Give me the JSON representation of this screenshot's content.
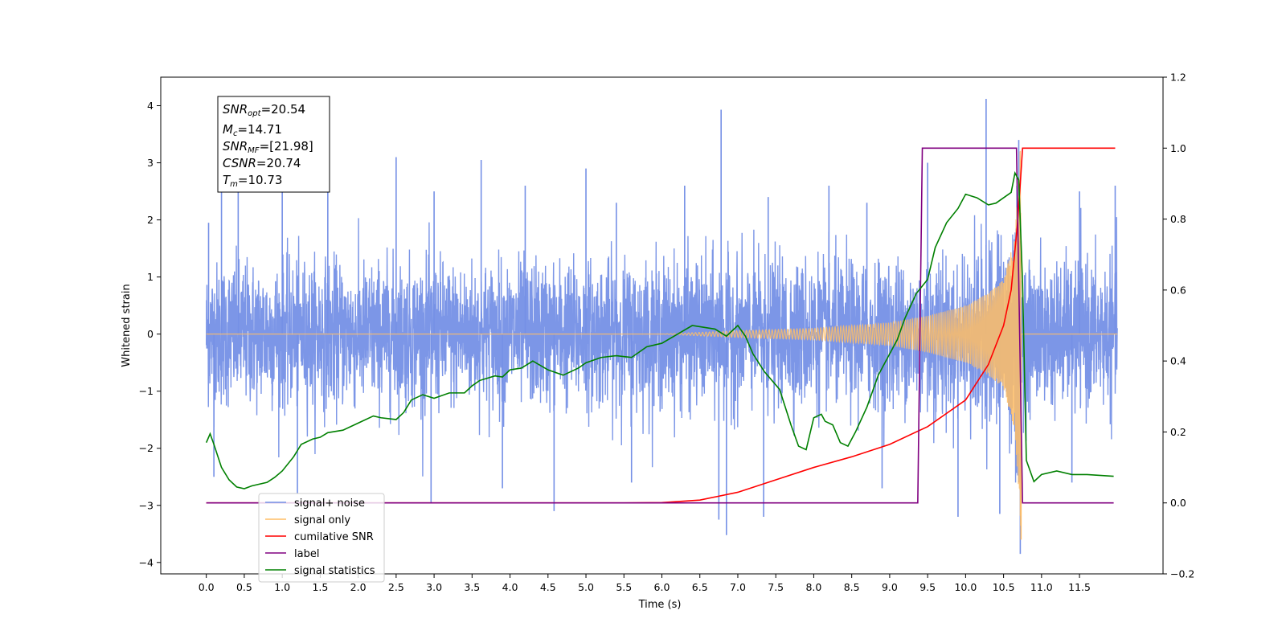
{
  "chart_data": {
    "type": "line",
    "xlabel": "Time (s)",
    "ylabel": "Whitened strain",
    "title": "",
    "xlim": [
      -0.6,
      12.6
    ],
    "ylim": [
      -4.2,
      4.5
    ],
    "y2lim": [
      -0.2,
      1.2
    ],
    "x_ticks": [
      "0.0",
      "0.5",
      "1.0",
      "1.5",
      "2.0",
      "2.5",
      "3.0",
      "3.5",
      "4.0",
      "4.5",
      "5.0",
      "5.5",
      "6.0",
      "6.5",
      "7.0",
      "7.5",
      "8.0",
      "8.5",
      "9.0",
      "9.5",
      "10.0",
      "10.5",
      "11.0",
      "11.5"
    ],
    "y_ticks": [
      "−4",
      "−3",
      "−2",
      "−1",
      "0",
      "1",
      "2",
      "3",
      "4"
    ],
    "y2_ticks": [
      "−0.2",
      "0.0",
      "0.2",
      "0.4",
      "0.6",
      "0.8",
      "1.0",
      "1.2"
    ],
    "grid": false,
    "legend_position": "lower-left",
    "stats_box": {
      "snr_opt": {
        "base": "SNR",
        "sub": "opt",
        "value": "=20.54"
      },
      "mc": {
        "base": "M",
        "sub": "c",
        "value": "=14.71"
      },
      "snr_mf": {
        "base": "SNR",
        "sub": "MF",
        "value": "=[21.98]"
      },
      "csnr": {
        "base": "CSNR",
        "sub": "",
        "value": "=20.74"
      },
      "tm": {
        "base": "T",
        "sub": "m",
        "value": "=10.73"
      }
    },
    "series": [
      {
        "name": "signal+ noise",
        "axis": "left",
        "color": "#7590e6",
        "kind": "noisy strain",
        "x_range": [
          0.0,
          12.0
        ],
        "typical_band": [
          -1.3,
          1.3
        ],
        "peaks": [
          {
            "x": 0.03,
            "y": 1.95
          },
          {
            "x": 0.2,
            "y": 2.6
          },
          {
            "x": 0.42,
            "y": 3.05
          },
          {
            "x": 1.0,
            "y": 2.7
          },
          {
            "x": 1.6,
            "y": 2.9
          },
          {
            "x": 2.5,
            "y": 3.1
          },
          {
            "x": 3.0,
            "y": 2.5
          },
          {
            "x": 3.62,
            "y": 3.05
          },
          {
            "x": 4.2,
            "y": 2.6
          },
          {
            "x": 5.0,
            "y": 2.9
          },
          {
            "x": 5.4,
            "y": 2.3
          },
          {
            "x": 6.3,
            "y": 2.6
          },
          {
            "x": 6.78,
            "y": 3.93
          },
          {
            "x": 7.4,
            "y": 2.4
          },
          {
            "x": 8.2,
            "y": 2.6
          },
          {
            "x": 8.7,
            "y": 2.3
          },
          {
            "x": 9.5,
            "y": 3.0
          },
          {
            "x": 10.27,
            "y": 4.12
          },
          {
            "x": 10.7,
            "y": 3.4
          },
          {
            "x": 11.5,
            "y": 2.5
          },
          {
            "x": 11.97,
            "y": 2.6
          }
        ],
        "troughs": [
          {
            "x": 0.1,
            "y": -2.5
          },
          {
            "x": 1.2,
            "y": -2.8
          },
          {
            "x": 2.96,
            "y": -2.95
          },
          {
            "x": 3.9,
            "y": -2.7
          },
          {
            "x": 4.58,
            "y": -3.1
          },
          {
            "x": 5.6,
            "y": -2.6
          },
          {
            "x": 6.75,
            "y": -3.25
          },
          {
            "x": 6.85,
            "y": -3.52
          },
          {
            "x": 7.34,
            "y": -3.2
          },
          {
            "x": 8.9,
            "y": -2.7
          },
          {
            "x": 9.9,
            "y": -3.2
          },
          {
            "x": 10.45,
            "y": -3.15
          },
          {
            "x": 10.72,
            "y": -3.85
          },
          {
            "x": 11.4,
            "y": -2.6
          }
        ]
      },
      {
        "name": "signal only",
        "axis": "left",
        "color": "#ffbe66",
        "kind": "chirp",
        "x_range": [
          0.0,
          12.0
        ],
        "merger_time": 10.73,
        "envelope_points": [
          [
            6.0,
            0.0
          ],
          [
            7.0,
            0.06
          ],
          [
            8.0,
            0.1
          ],
          [
            9.0,
            0.2
          ],
          [
            9.5,
            0.32
          ],
          [
            10.0,
            0.5
          ],
          [
            10.3,
            0.72
          ],
          [
            10.5,
            0.95
          ],
          [
            10.65,
            1.7
          ],
          [
            10.73,
            3.5
          ]
        ],
        "merger_extreme": {
          "x": 10.73,
          "y": -3.6
        }
      },
      {
        "name": "cumilative SNR",
        "axis": "right",
        "color": "#ff0000",
        "points": [
          [
            0.0,
            0.0
          ],
          [
            5.5,
            0.0
          ],
          [
            6.0,
            0.001
          ],
          [
            6.5,
            0.008
          ],
          [
            7.0,
            0.03
          ],
          [
            7.5,
            0.065
          ],
          [
            8.0,
            0.1
          ],
          [
            8.5,
            0.13
          ],
          [
            9.0,
            0.165
          ],
          [
            9.5,
            0.215
          ],
          [
            10.0,
            0.29
          ],
          [
            10.3,
            0.39
          ],
          [
            10.5,
            0.5
          ],
          [
            10.6,
            0.6
          ],
          [
            10.68,
            0.78
          ],
          [
            10.72,
            0.9
          ],
          [
            10.75,
            1.0
          ],
          [
            11.97,
            1.0
          ]
        ]
      },
      {
        "name": "label",
        "axis": "right",
        "color": "#800080",
        "points": [
          [
            0.0,
            0.0
          ],
          [
            9.37,
            0.0
          ],
          [
            9.43,
            1.0
          ],
          [
            10.67,
            1.0
          ],
          [
            10.75,
            0.0
          ],
          [
            11.95,
            0.0
          ]
        ]
      },
      {
        "name": "signal statistics",
        "axis": "right",
        "color": "#008000",
        "points": [
          [
            0.0,
            0.17
          ],
          [
            0.05,
            0.195
          ],
          [
            0.1,
            0.165
          ],
          [
            0.2,
            0.1
          ],
          [
            0.3,
            0.065
          ],
          [
            0.4,
            0.045
          ],
          [
            0.5,
            0.04
          ],
          [
            0.6,
            0.048
          ],
          [
            0.8,
            0.058
          ],
          [
            0.9,
            0.072
          ],
          [
            1.0,
            0.09
          ],
          [
            1.15,
            0.13
          ],
          [
            1.25,
            0.165
          ],
          [
            1.4,
            0.18
          ],
          [
            1.5,
            0.185
          ],
          [
            1.6,
            0.198
          ],
          [
            1.8,
            0.205
          ],
          [
            2.0,
            0.225
          ],
          [
            2.2,
            0.245
          ],
          [
            2.3,
            0.24
          ],
          [
            2.5,
            0.235
          ],
          [
            2.6,
            0.255
          ],
          [
            2.7,
            0.29
          ],
          [
            2.85,
            0.305
          ],
          [
            3.0,
            0.295
          ],
          [
            3.2,
            0.31
          ],
          [
            3.4,
            0.31
          ],
          [
            3.5,
            0.33
          ],
          [
            3.6,
            0.345
          ],
          [
            3.8,
            0.358
          ],
          [
            3.9,
            0.355
          ],
          [
            4.0,
            0.375
          ],
          [
            4.15,
            0.38
          ],
          [
            4.3,
            0.4
          ],
          [
            4.5,
            0.375
          ],
          [
            4.7,
            0.36
          ],
          [
            4.9,
            0.38
          ],
          [
            5.0,
            0.395
          ],
          [
            5.2,
            0.41
          ],
          [
            5.4,
            0.415
          ],
          [
            5.6,
            0.41
          ],
          [
            5.8,
            0.44
          ],
          [
            6.0,
            0.45
          ],
          [
            6.2,
            0.475
          ],
          [
            6.4,
            0.5
          ],
          [
            6.55,
            0.495
          ],
          [
            6.7,
            0.49
          ],
          [
            6.85,
            0.47
          ],
          [
            7.0,
            0.5
          ],
          [
            7.1,
            0.47
          ],
          [
            7.2,
            0.42
          ],
          [
            7.35,
            0.37
          ],
          [
            7.55,
            0.32
          ],
          [
            7.7,
            0.22
          ],
          [
            7.8,
            0.16
          ],
          [
            7.9,
            0.15
          ],
          [
            8.0,
            0.24
          ],
          [
            8.1,
            0.25
          ],
          [
            8.15,
            0.23
          ],
          [
            8.25,
            0.22
          ],
          [
            8.35,
            0.17
          ],
          [
            8.45,
            0.16
          ],
          [
            8.55,
            0.2
          ],
          [
            8.7,
            0.27
          ],
          [
            8.85,
            0.36
          ],
          [
            9.0,
            0.42
          ],
          [
            9.1,
            0.46
          ],
          [
            9.2,
            0.52
          ],
          [
            9.35,
            0.59
          ],
          [
            9.5,
            0.63
          ],
          [
            9.6,
            0.72
          ],
          [
            9.75,
            0.79
          ],
          [
            9.9,
            0.83
          ],
          [
            10.0,
            0.87
          ],
          [
            10.15,
            0.86
          ],
          [
            10.3,
            0.84
          ],
          [
            10.4,
            0.845
          ],
          [
            10.5,
            0.86
          ],
          [
            10.6,
            0.875
          ],
          [
            10.65,
            0.93
          ],
          [
            10.7,
            0.91
          ],
          [
            10.75,
            0.62
          ],
          [
            10.8,
            0.12
          ],
          [
            10.9,
            0.06
          ],
          [
            11.0,
            0.08
          ],
          [
            11.2,
            0.09
          ],
          [
            11.4,
            0.08
          ],
          [
            11.6,
            0.08
          ],
          [
            11.95,
            0.075
          ]
        ]
      }
    ]
  }
}
